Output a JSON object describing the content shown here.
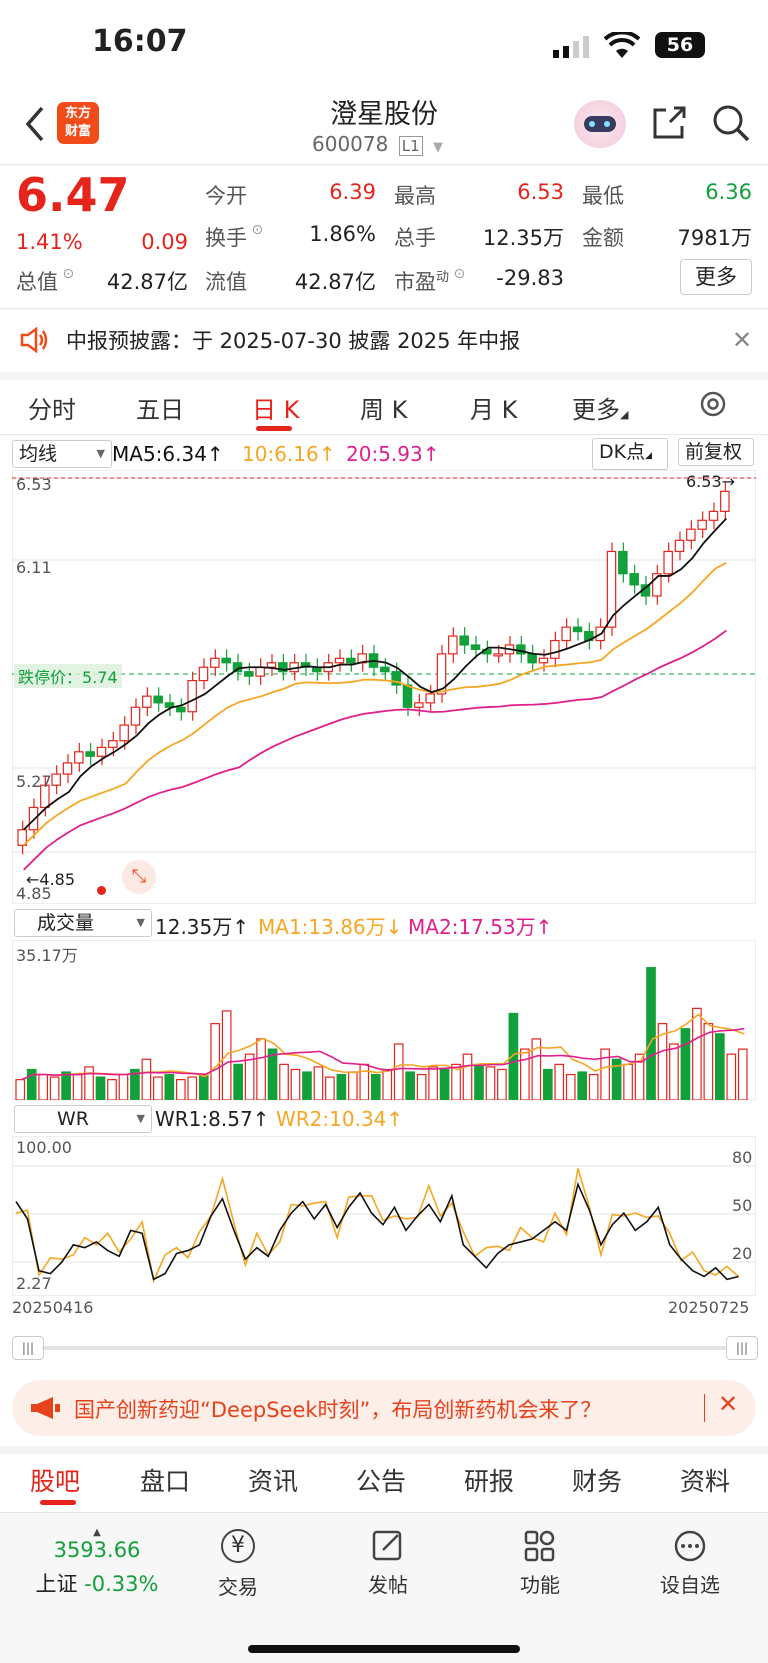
{
  "status": {
    "time": "16:07",
    "battery": "56"
  },
  "header": {
    "stock_name": "澄星股份",
    "stock_code": "600078",
    "level": "L1",
    "logo_text_top": "东方",
    "logo_text_bottom": "财富"
  },
  "quote": {
    "price": "6.47",
    "change_pct": "1.41%",
    "change_abs": "0.09",
    "total_value_label": "总值",
    "total_value": "42.87亿",
    "open_label": "今开",
    "open": "6.39",
    "turnover_label": "换手",
    "turnover": "1.86%",
    "float_label": "流值",
    "float_value": "42.87亿",
    "high_label": "最高",
    "high": "6.53",
    "volume_label": "总手",
    "volume": "12.35万",
    "pe_label": "市盈",
    "pe_sup": "动",
    "pe": "-29.83",
    "low_label": "最低",
    "low": "6.36",
    "amount_label": "金额",
    "amount": "7981万",
    "more_label": "更多"
  },
  "notice": {
    "text": "中报预披露：于 2025-07-30 披露 2025 年中报"
  },
  "tabs": [
    "分时",
    "五日",
    "日 K",
    "周 K",
    "月 K",
    "更多"
  ],
  "active_tab": 2,
  "kline": {
    "indicator_select": "均线",
    "ma5": "MA5:6.34↑",
    "ma10": "10:6.16↑",
    "ma20": "20:5.93↑",
    "dk_label": "DK点",
    "adjust_label": "前复权",
    "y_top": "6.53",
    "y_mid1": "6.11",
    "y_mid2": "5.27",
    "y_bottom": "4.85",
    "limit_label": "跌停价：",
    "limit_value": "5.74",
    "high_marker": "6.53→",
    "low_marker": "←4.85",
    "colors": {
      "up": "#e5241b",
      "down": "#11a03a",
      "ma5": "#111111",
      "ma10": "#f5a623",
      "ma20": "#e01f8c"
    }
  },
  "volume": {
    "select": "成交量",
    "value": "12.35万↑",
    "ma1": "MA1:13.86万↓",
    "ma2": "MA2:17.53万↑",
    "max_label": "35.17万"
  },
  "wr": {
    "select": "WR",
    "wr1": "WR1:8.57↑",
    "wr2": "WR2:10.34↑",
    "top_label": "100.00",
    "bottom_label": "2.27",
    "levels": [
      "80",
      "50",
      "20"
    ],
    "date_start": "20250416",
    "date_end": "20250725"
  },
  "ad": {
    "text": "国产创新药迎“DeepSeek时刻”，布局创新药机会来了？"
  },
  "bottom_tabs": [
    "股吧",
    "盘口",
    "资讯",
    "公告",
    "研报",
    "财务",
    "资料"
  ],
  "dock": {
    "index_value": "3593.66",
    "index_name": "上证",
    "index_change": "-0.33%",
    "items": [
      "交易",
      "发帖",
      "功能",
      "设自选"
    ]
  }
}
